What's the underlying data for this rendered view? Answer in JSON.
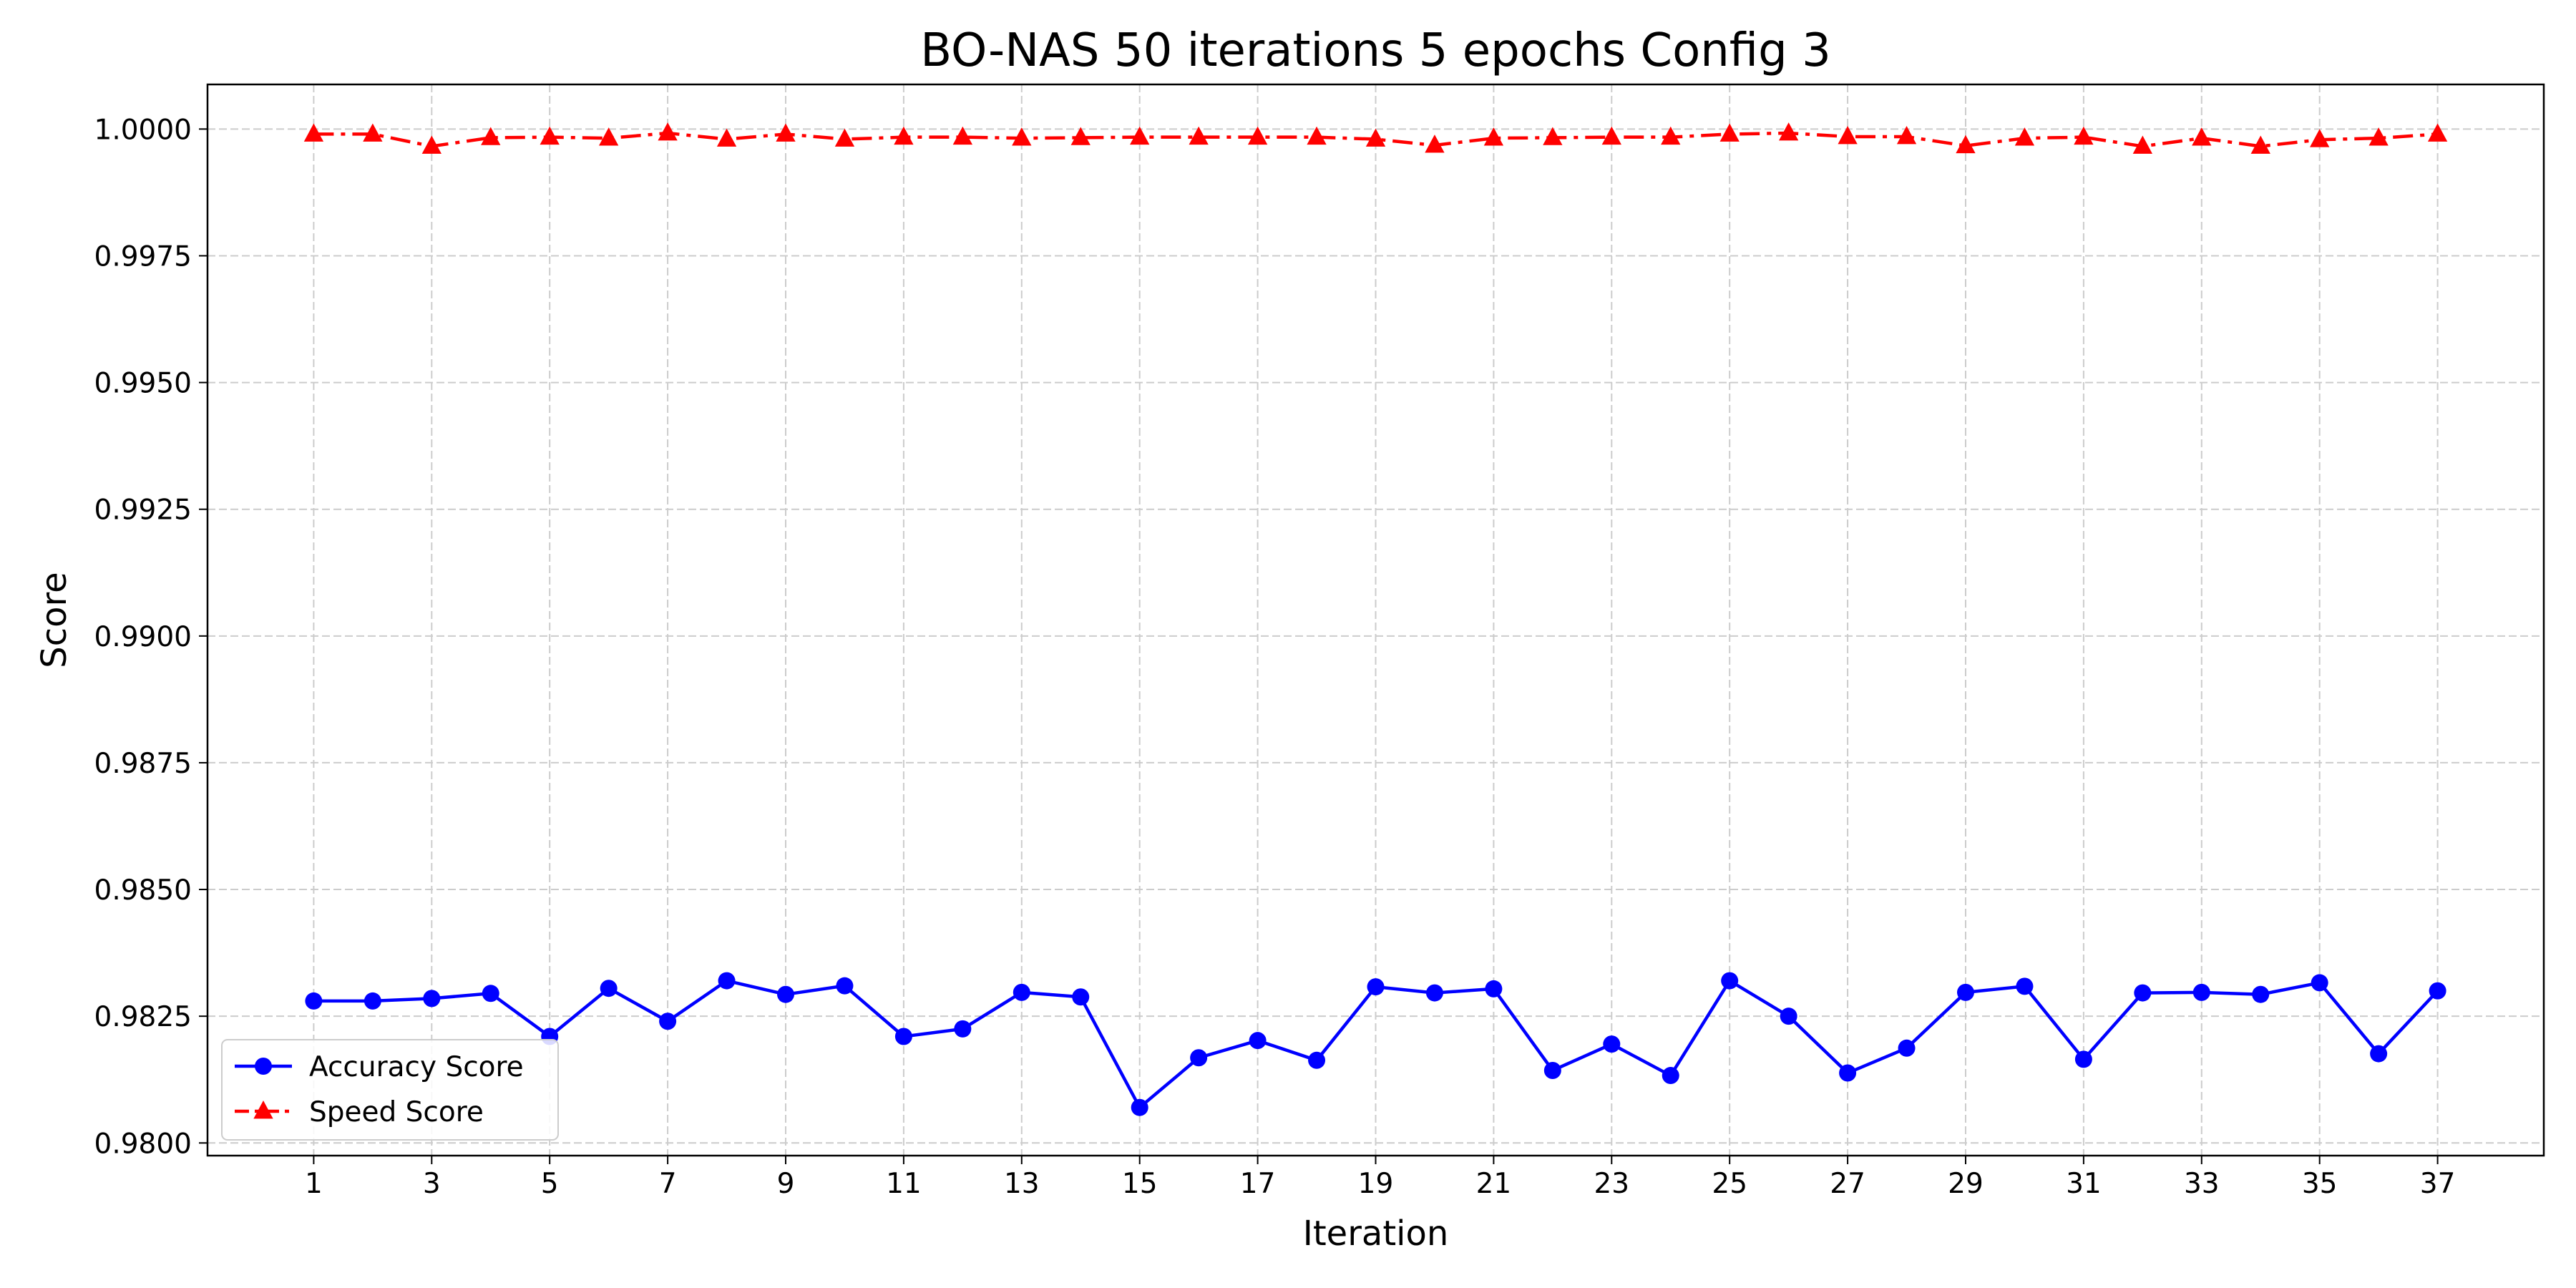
{
  "chart_data": {
    "type": "line",
    "title": "BO-NAS 50 iterations 5 epochs Config 3",
    "xlabel": "Iteration",
    "ylabel": "Score",
    "xlim": [
      -0.8,
      38.8
    ],
    "ylim": [
      0.97975,
      1.00088
    ],
    "x_ticks": [
      1,
      3,
      5,
      7,
      9,
      11,
      13,
      15,
      17,
      19,
      21,
      23,
      25,
      27,
      29,
      31,
      33,
      35,
      37
    ],
    "y_ticks": [
      "0.9800",
      "0.9825",
      "0.9850",
      "0.9875",
      "0.9900",
      "0.9925",
      "0.9950",
      "0.9975",
      "1.0000"
    ],
    "grid": true,
    "legend_position": "lower-left",
    "x": [
      1,
      2,
      3,
      4,
      5,
      6,
      7,
      8,
      9,
      10,
      11,
      12,
      13,
      14,
      15,
      16,
      17,
      18,
      19,
      20,
      21,
      22,
      23,
      24,
      25,
      26,
      27,
      28,
      29,
      30,
      31,
      32,
      33,
      34,
      35,
      36,
      37
    ],
    "series": [
      {
        "name": "Accuracy Score",
        "color": "#0000ff",
        "marker": "circle",
        "linestyle": "solid",
        "values": [
          0.9828,
          0.9828,
          0.98285,
          0.98295,
          0.9821,
          0.98305,
          0.9824,
          0.9832,
          0.98293,
          0.9831,
          0.9821,
          0.98225,
          0.98297,
          0.98288,
          0.9807,
          0.98168,
          0.98202,
          0.98163,
          0.98308,
          0.98296,
          0.98304,
          0.98143,
          0.98195,
          0.98133,
          0.9832,
          0.9825,
          0.98138,
          0.98187,
          0.98297,
          0.98309,
          0.98165,
          0.98296,
          0.98297,
          0.98293,
          0.98316,
          0.98176,
          0.983
        ]
      },
      {
        "name": "Speed Score",
        "color": "#ff0000",
        "marker": "triangle",
        "linestyle": "dashdot",
        "values": [
          0.9999,
          0.9999,
          0.99966,
          0.99983,
          0.99984,
          0.99982,
          0.99992,
          0.9998,
          0.9999,
          0.9998,
          0.99984,
          0.99984,
          0.99982,
          0.99983,
          0.99984,
          0.99984,
          0.99984,
          0.99984,
          0.9998,
          0.99968,
          0.99982,
          0.99983,
          0.99984,
          0.99984,
          0.9999,
          0.99992,
          0.99985,
          0.99985,
          0.99967,
          0.99982,
          0.99984,
          0.99966,
          0.99982,
          0.99966,
          0.99979,
          0.99982,
          0.9999
        ]
      }
    ]
  }
}
